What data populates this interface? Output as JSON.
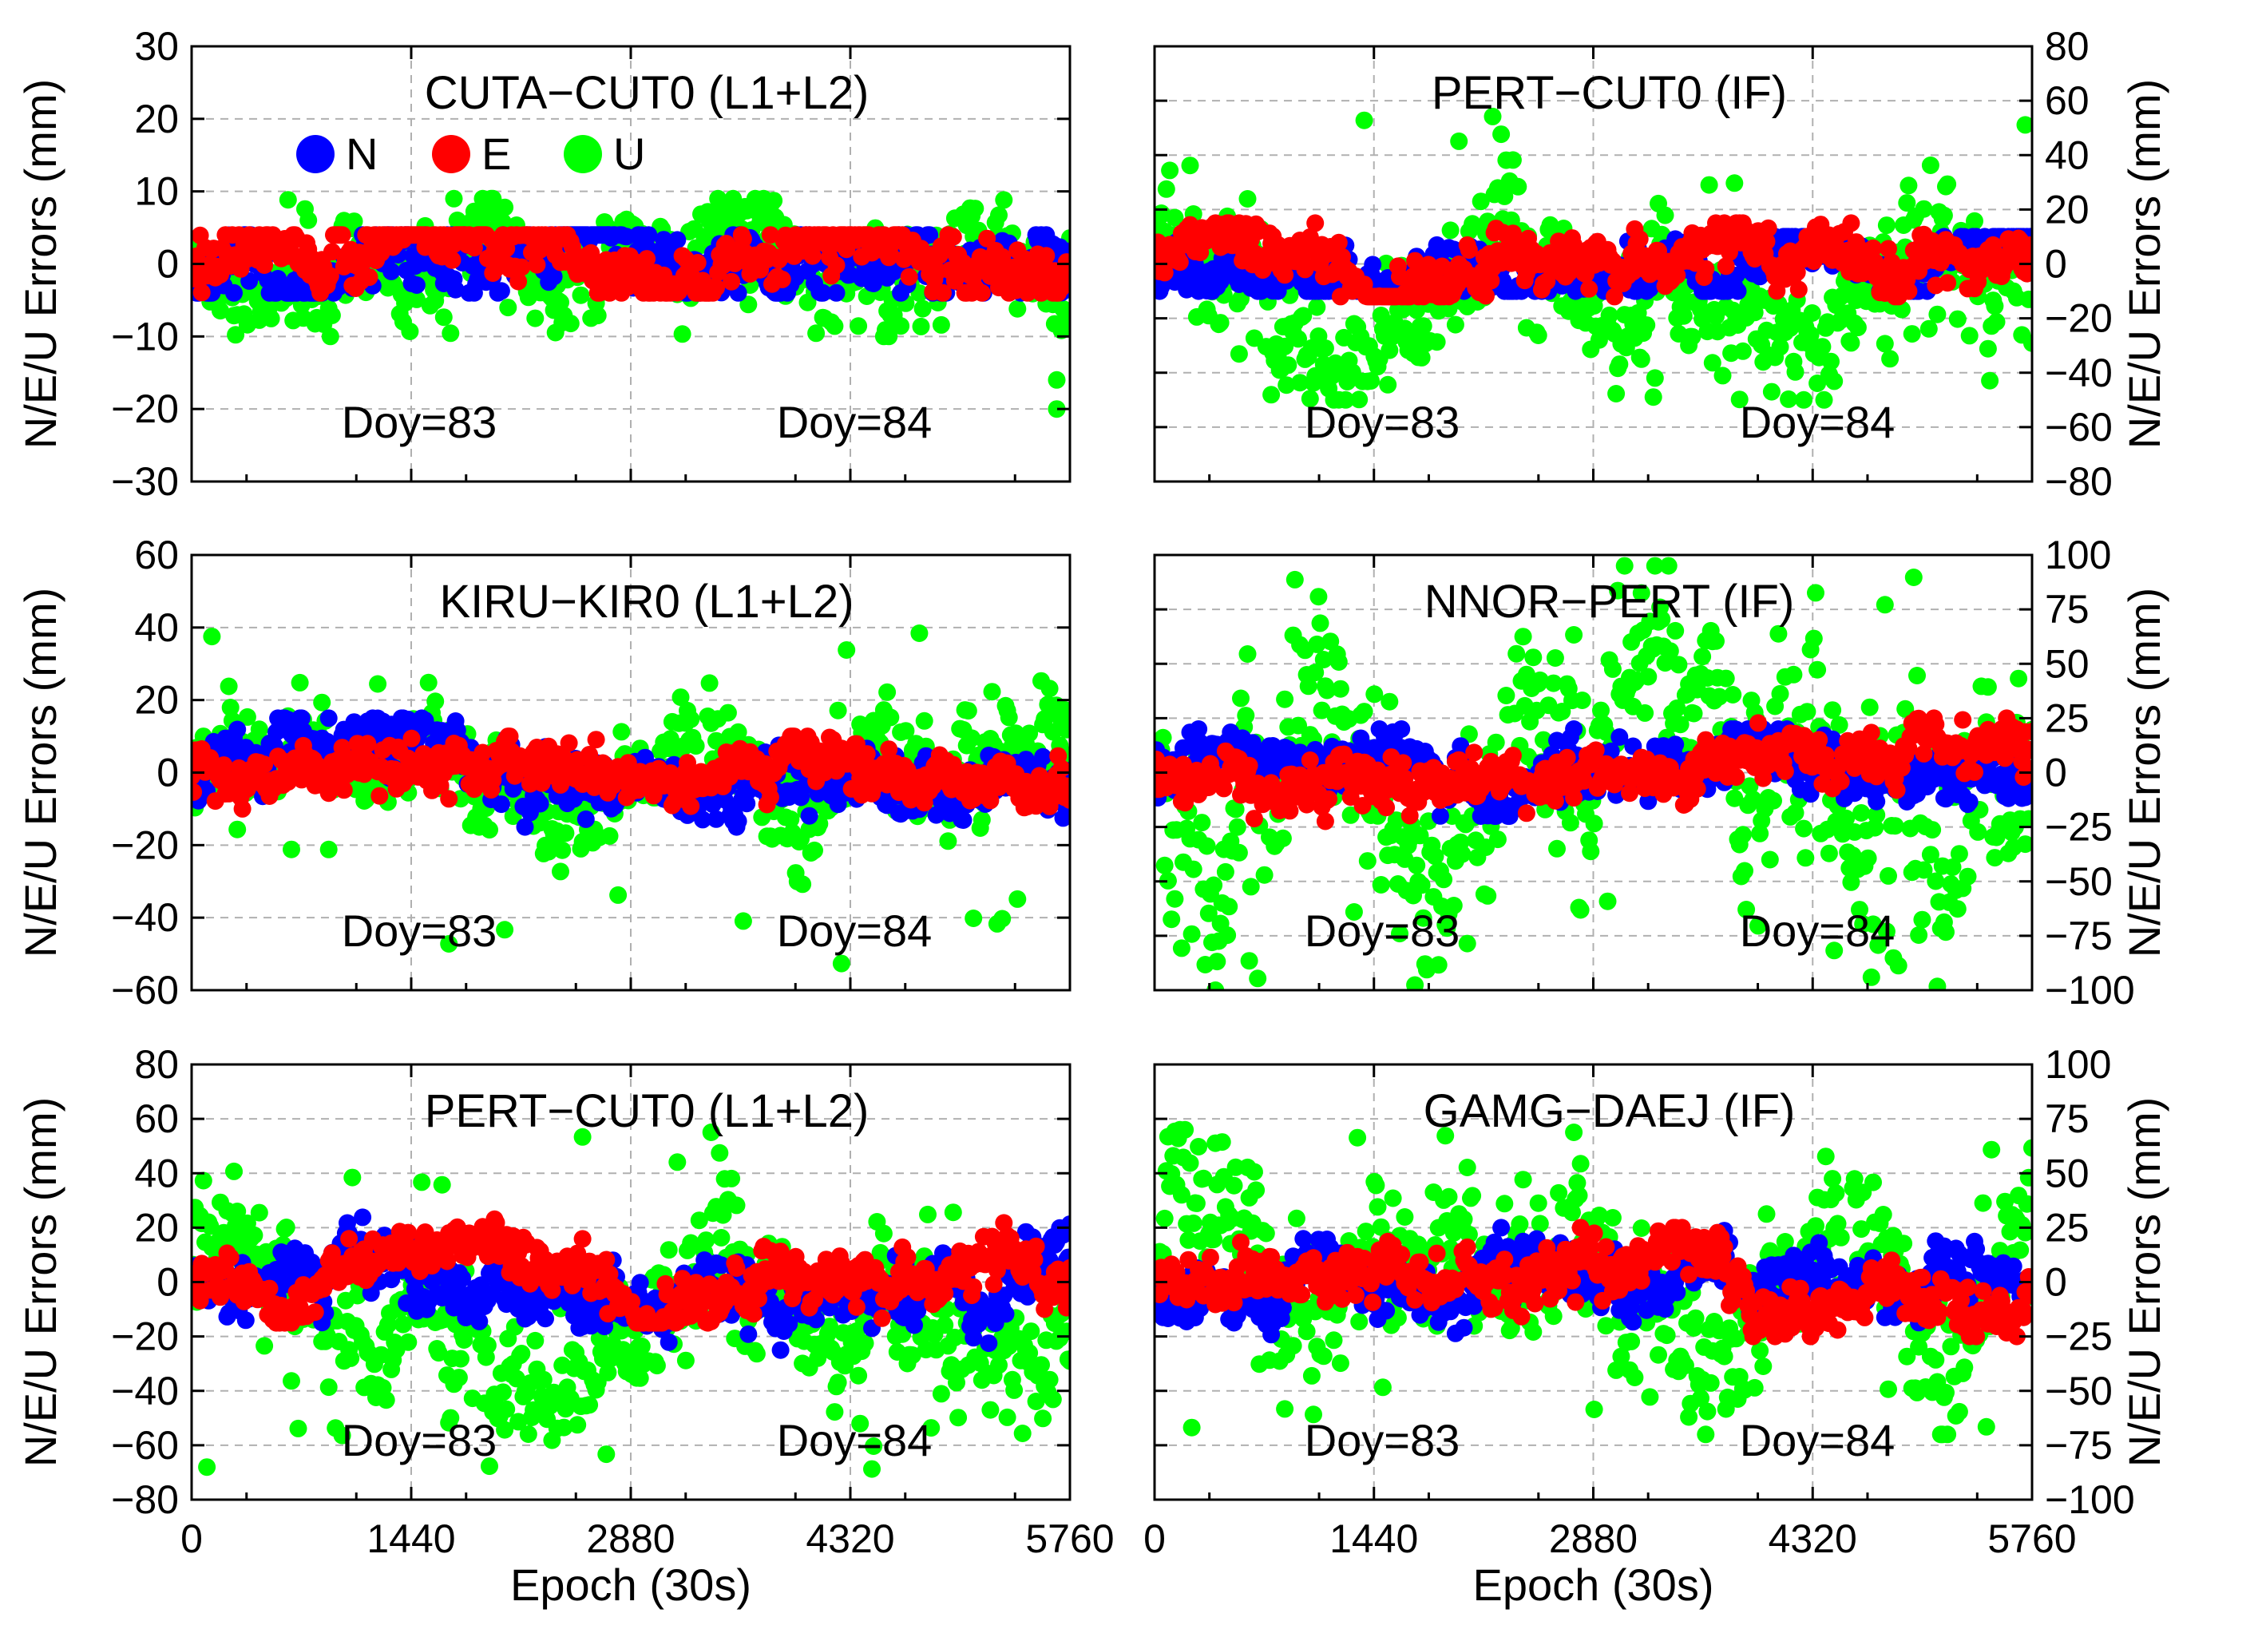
{
  "figure": {
    "series": [
      {
        "name": "N",
        "color": "#0000ff"
      },
      {
        "name": "E",
        "color": "#ff0000"
      },
      {
        "name": "U",
        "color": "#00ff00"
      }
    ],
    "x_axis_label": "Epoch (30s)",
    "y_axis_label": "N/E/U Errors (mm)"
  },
  "chart_data": [
    {
      "type": "scatter",
      "title": "CUTA−CUT0 (L1+L2)",
      "xlabel": "",
      "ylabel": "N/E/U Errors (mm)",
      "xlim": [
        0,
        5760
      ],
      "ylim": [
        -30,
        30
      ],
      "xticks": [
        0,
        1440,
        2880,
        4320,
        5760
      ],
      "yticks": [
        30,
        20,
        10,
        0,
        -10,
        -20,
        -30
      ],
      "ytick_labels": [
        "30",
        "20",
        "10",
        "0",
        "−10",
        "−20",
        "−30"
      ],
      "y_axis_side": "left",
      "legend": [
        "N",
        "E",
        "U"
      ],
      "annotations": [
        "Doy=83",
        "Doy=84"
      ],
      "series": [
        {
          "name": "N",
          "spread": 3,
          "typical_range": [
            -4,
            4
          ]
        },
        {
          "name": "E",
          "spread": 2.5,
          "typical_range": [
            -4,
            4
          ]
        },
        {
          "name": "U",
          "spread": 4,
          "typical_range": [
            -10,
            9
          ],
          "outliers": [
            -16,
            -20
          ]
        }
      ]
    },
    {
      "type": "scatter",
      "title": "PERT−CUT0 (IF)",
      "xlabel": "",
      "ylabel": "N/E/U Errors (mm)",
      "xlim": [
        0,
        5760
      ],
      "ylim": [
        -80,
        80
      ],
      "xticks": [
        0,
        1440,
        2880,
        4320,
        5760
      ],
      "yticks": [
        80,
        60,
        40,
        20,
        0,
        -20,
        -40,
        -60,
        -80
      ],
      "ytick_labels": [
        "80",
        "60",
        "40",
        "20",
        "0",
        "−20",
        "−40",
        "−60",
        "−80"
      ],
      "y_axis_side": "right",
      "annotations": [
        "Doy=83",
        "Doy=84"
      ],
      "series": [
        {
          "name": "N",
          "spread": 6,
          "typical_range": [
            -10,
            10
          ]
        },
        {
          "name": "E",
          "spread": 6,
          "typical_range": [
            -12,
            15
          ]
        },
        {
          "name": "U",
          "spread": 15,
          "typical_range": [
            -50,
            60
          ]
        }
      ]
    },
    {
      "type": "scatter",
      "title": "KIRU−KIR0 (L1+L2)",
      "xlabel": "",
      "ylabel": "N/E/U Errors (mm)",
      "xlim": [
        0,
        5760
      ],
      "ylim": [
        -60,
        60
      ],
      "xticks": [
        0,
        1440,
        2880,
        4320,
        5760
      ],
      "yticks": [
        60,
        40,
        20,
        0,
        -20,
        -40,
        -60
      ],
      "ytick_labels": [
        "60",
        "40",
        "20",
        "0",
        "−20",
        "−40",
        "−60"
      ],
      "y_axis_side": "left",
      "annotations": [
        "Doy=83",
        "Doy=84"
      ],
      "series": [
        {
          "name": "N",
          "spread": 5,
          "typical_range": [
            -15,
            15
          ]
        },
        {
          "name": "E",
          "spread": 4,
          "typical_range": [
            -10,
            10
          ]
        },
        {
          "name": "U",
          "spread": 9,
          "typical_range": [
            -55,
            40
          ]
        }
      ]
    },
    {
      "type": "scatter",
      "title": "NNOR−PERT (IF)",
      "xlabel": "",
      "ylabel": "N/E/U Errors (mm)",
      "xlim": [
        0,
        5760
      ],
      "ylim": [
        -100,
        100
      ],
      "xticks": [
        0,
        1440,
        2880,
        4320,
        5760
      ],
      "yticks": [
        100,
        75,
        50,
        25,
        0,
        -25,
        -50,
        -75,
        -100
      ],
      "ytick_labels": [
        "100",
        "75",
        "50",
        "25",
        "0",
        "−25",
        "−50",
        "−75",
        "−100"
      ],
      "y_axis_side": "right",
      "annotations": [
        "Doy=83",
        "Doy=84"
      ],
      "series": [
        {
          "name": "N",
          "spread": 8,
          "typical_range": [
            -20,
            20
          ]
        },
        {
          "name": "E",
          "spread": 7,
          "typical_range": [
            -30,
            25
          ]
        },
        {
          "name": "U",
          "spread": 30,
          "typical_range": [
            -100,
            95
          ]
        }
      ]
    },
    {
      "type": "scatter",
      "title": "PERT−CUT0 (L1+L2)",
      "xlabel": "Epoch (30s)",
      "ylabel": "N/E/U Errors (mm)",
      "xlim": [
        0,
        5760
      ],
      "ylim": [
        -80,
        80
      ],
      "xticks": [
        0,
        1440,
        2880,
        4320,
        5760
      ],
      "yticks": [
        80,
        60,
        40,
        20,
        0,
        -20,
        -40,
        -60,
        -80
      ],
      "ytick_labels": [
        "80",
        "60",
        "40",
        "20",
        "0",
        "−20",
        "−40",
        "−60",
        "−80"
      ],
      "y_axis_side": "left",
      "annotations": [
        "Doy=83",
        "Doy=84"
      ],
      "series": [
        {
          "name": "N",
          "spread": 7,
          "typical_range": [
            -25,
            25
          ]
        },
        {
          "name": "E",
          "spread": 6,
          "typical_range": [
            -15,
            25
          ]
        },
        {
          "name": "U",
          "spread": 15,
          "typical_range": [
            -70,
            62
          ]
        }
      ]
    },
    {
      "type": "scatter",
      "title": "GAMG−DAEJ (IF)",
      "xlabel": "Epoch (30s)",
      "ylabel": "N/E/U Errors (mm)",
      "xlim": [
        0,
        5760
      ],
      "ylim": [
        -100,
        100
      ],
      "xticks": [
        0,
        1440,
        2880,
        4320,
        5760
      ],
      "yticks": [
        100,
        75,
        50,
        25,
        0,
        -25,
        -50,
        -75,
        -100
      ],
      "ytick_labels": [
        "100",
        "75",
        "50",
        "25",
        "0",
        "−25",
        "−50",
        "−75",
        "−100"
      ],
      "y_axis_side": "right",
      "annotations": [
        "Doy=83",
        "Doy=84"
      ],
      "series": [
        {
          "name": "N",
          "spread": 8,
          "typical_range": [
            -25,
            25
          ]
        },
        {
          "name": "E",
          "spread": 8,
          "typical_range": [
            -25,
            25
          ]
        },
        {
          "name": "U",
          "spread": 25,
          "typical_range": [
            -70,
            70
          ]
        }
      ]
    }
  ]
}
